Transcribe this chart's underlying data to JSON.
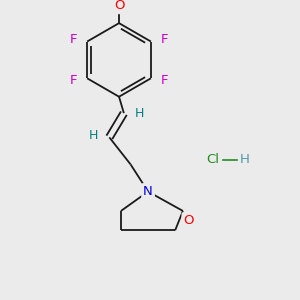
{
  "background_color": "#ebebeb",
  "bond_color": "#1a1a1a",
  "atom_colors": {
    "F": "#cc00cc",
    "O_morpholine": "#ff0000",
    "N": "#0000dd",
    "O_ether": "#ff0000",
    "H": "#008080",
    "Cl": "#228B22",
    "H_hcl": "#5599aa"
  },
  "font_size_atoms": 9.5,
  "lw": 1.3
}
